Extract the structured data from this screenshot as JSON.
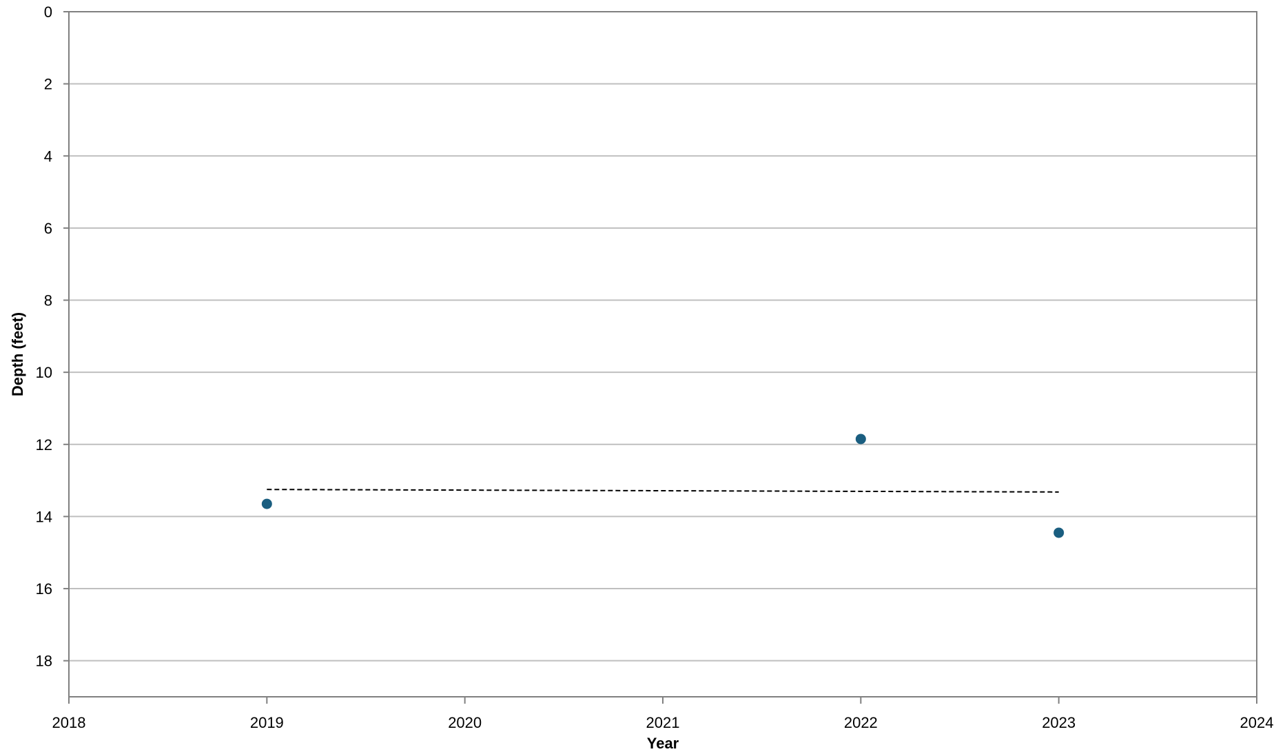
{
  "chart_data": {
    "type": "scatter",
    "title": "",
    "xlabel": "Year",
    "ylabel": "Depth (feet)",
    "xlim": [
      2018,
      2024
    ],
    "ylim": [
      0,
      19
    ],
    "y_inverted": true,
    "x_ticks": [
      2018,
      2019,
      2020,
      2021,
      2022,
      2023,
      2024
    ],
    "y_ticks": [
      0,
      2,
      4,
      6,
      8,
      10,
      12,
      14,
      16,
      18
    ],
    "grid": "horizontal",
    "legend": "none",
    "series": [
      {
        "x": [
          2019,
          2022,
          2023
        ],
        "y": [
          13.65,
          11.85,
          14.45
        ],
        "color": "#1a5e80",
        "marker": "circle"
      }
    ],
    "trendline": {
      "style": "dashed",
      "color": "#000000",
      "x": [
        2019,
        2023
      ],
      "y": [
        13.25,
        13.32
      ]
    }
  }
}
